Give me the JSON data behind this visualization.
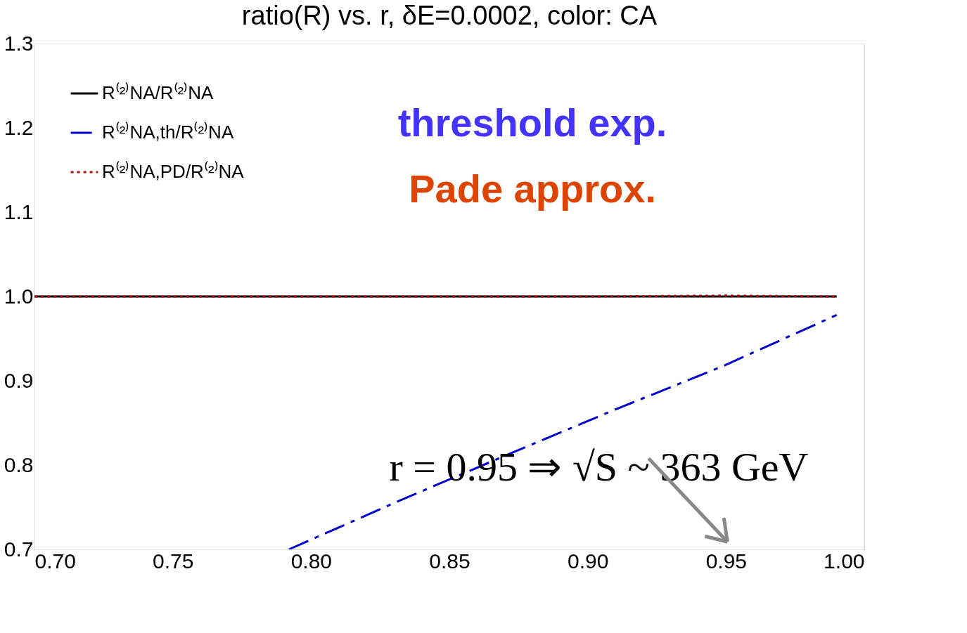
{
  "chart_data": {
    "type": "line",
    "title": "ratio(R) vs. r, δE=0.0002, color: CA",
    "xlim": [
      0.7,
      1.0
    ],
    "xticks": [
      {
        "value": 0.7,
        "label": "0.70"
      },
      {
        "value": 0.75,
        "label": "0.75"
      },
      {
        "value": 0.8,
        "label": "0.80"
      },
      {
        "value": 0.85,
        "label": "0.85"
      },
      {
        "value": 0.9,
        "label": "0.90"
      },
      {
        "value": 0.95,
        "label": "0.95"
      },
      {
        "value": 1.0,
        "label": "1.00"
      }
    ],
    "ylim": [
      0.7,
      1.3
    ],
    "yticks": [
      0.7,
      0.8,
      0.9,
      {
        "value": 1.0,
        "label": "1.0"
      },
      1.1,
      1.2,
      1.3
    ],
    "legend": "top left",
    "series": [
      {
        "name": "R⁽²⁾NA/R⁽²⁾NA",
        "color": "#000000",
        "line_style": "solid",
        "x": [
          0.7,
          0.99
        ],
        "values": [
          1.0,
          1.0
        ]
      },
      {
        "name": "R⁽²⁾NA,th/R⁽²⁾NA",
        "color": "#0000cc",
        "line_style": "dashed",
        "x": [
          0.792,
          0.83,
          0.8715,
          0.91,
          0.9486,
          0.99
        ],
        "values": [
          0.7,
          0.755,
          0.813,
          0.866,
          0.917,
          0.978
        ]
      },
      {
        "name": "R⁽²⁾NA,PD/R⁽²⁾NA",
        "color": "#aa1111",
        "line_style": "dotted",
        "x": [
          0.7,
          0.9,
          0.95,
          0.99
        ],
        "values": [
          1.0,
          1.0,
          1.001,
          1.0
        ]
      }
    ],
    "annotations": [
      "threshold exp.",
      "Pade approx.",
      "r = 0.95 ⇒ √S ~ 363 GeV"
    ]
  }
}
